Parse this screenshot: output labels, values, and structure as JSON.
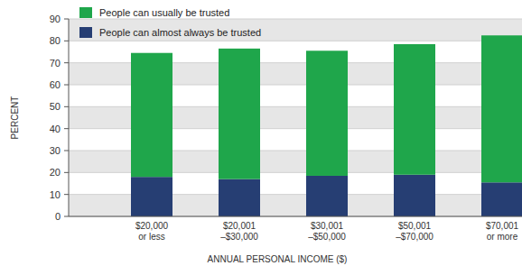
{
  "chart_data": {
    "type": "bar",
    "stacked": true,
    "grid": true,
    "legend": "top-left",
    "x_label": "ANNUAL PERSONAL INCOME ($)",
    "y_label": "PERCENT",
    "categories": [
      "$20,000\nor less",
      "$20,001\n–$30,000",
      "$30,001\n–$50,000",
      "$50,001\n–$70,000",
      "$70,001\nor more"
    ],
    "series": [
      {
        "name": "People can almost always be trusted",
        "color": "#263e73",
        "values": [
          18,
          17,
          18.5,
          19,
          15.5
        ]
      },
      {
        "name": "People can usually be trusted",
        "color": "#1fa64b",
        "values": [
          56.5,
          59.5,
          57,
          59.5,
          67
        ]
      }
    ],
    "ylim": [
      0,
      90
    ],
    "yticks": [
      0,
      10,
      20,
      30,
      40,
      50,
      60,
      70,
      80,
      90
    ]
  }
}
